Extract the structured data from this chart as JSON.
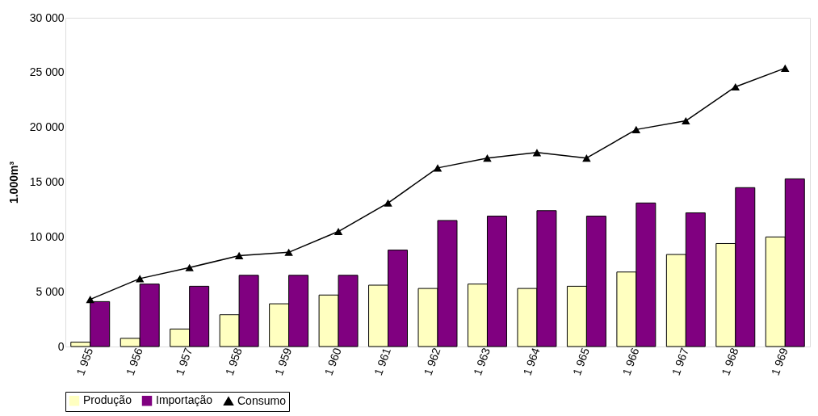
{
  "chart_data": {
    "type": "bar",
    "ylabel": "1.000m³",
    "categories": [
      "1 955",
      "1 956",
      "1 957",
      "1 958",
      "1 959",
      "1 960",
      "1 961",
      "1 962",
      "1 963",
      "1 964",
      "1 965",
      "1 966",
      "1 967",
      "1 968",
      "1 969"
    ],
    "series": [
      {
        "name": "Produção",
        "type": "bar",
        "color": "#ffffc0",
        "values": [
          400,
          750,
          1600,
          2900,
          3900,
          4700,
          5600,
          5300,
          5700,
          5300,
          5500,
          6800,
          8400,
          9400,
          10000
        ]
      },
      {
        "name": "Importação",
        "type": "bar",
        "color": "#800080",
        "values": [
          4100,
          5700,
          5500,
          6500,
          6500,
          6500,
          8800,
          11500,
          11900,
          12400,
          11900,
          13100,
          12200,
          14500,
          15300
        ]
      },
      {
        "name": "Consumo",
        "type": "line",
        "color": "#000000",
        "marker": "triangle",
        "values": [
          4300,
          6200,
          7200,
          8300,
          8600,
          10500,
          13100,
          16300,
          17200,
          17700,
          17200,
          19800,
          20600,
          23700,
          25400
        ]
      }
    ],
    "ylim": [
      0,
      30000
    ],
    "yticks": [
      0,
      {
        "value": 5000,
        "label": "5 000"
      },
      {
        "value": 10000,
        "label": "10 000"
      },
      {
        "value": 15000,
        "label": "15 000"
      },
      {
        "value": 20000,
        "label": "20 000"
      },
      {
        "value": 25000,
        "label": "25 000"
      },
      {
        "value": 30000,
        "label": "30 000"
      }
    ],
    "grid": false,
    "legend": "bottom"
  }
}
